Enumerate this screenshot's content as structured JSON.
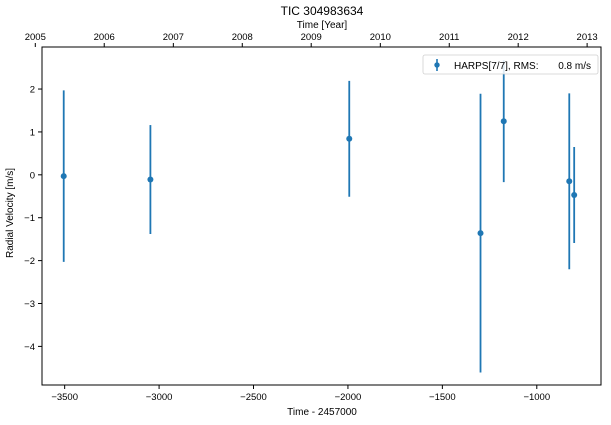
{
  "chart_data": {
    "type": "scatter",
    "title": "TIC 304983634",
    "xlabel": "Time - 2457000",
    "ylabel": "Radial Velocity [m/s]",
    "top_xlabel": "Time [Year]",
    "xlim": [
      -3620,
      -660
    ],
    "ylim": [
      -4.9,
      2.98
    ],
    "x_ticks": [
      -3500,
      -3000,
      -2500,
      -2000,
      -1500,
      -1000
    ],
    "x_tick_labels": [
      "−3500",
      "−3000",
      "−2500",
      "−2000",
      "−1500",
      "−1000"
    ],
    "y_ticks": [
      -4,
      -3,
      -2,
      -1,
      0,
      1,
      2
    ],
    "y_tick_labels": [
      "−4",
      "−3",
      "−2",
      "−1",
      "0",
      "1",
      "2"
    ],
    "top_ticks": [
      -3655.5,
      -3290.5,
      -2924.5,
      -2559.5,
      -2194.5,
      -1828.5,
      -1463.5,
      -1098.5,
      -733.5
    ],
    "top_tick_labels": [
      "2005",
      "2006",
      "2007",
      "2008",
      "2009",
      "2010",
      "2011",
      "2012",
      "2013"
    ],
    "color": "#1f77b4",
    "legend": {
      "label": "HARPS[7/7], RMS:",
      "value": "0.8 m/s",
      "position": "upper right"
    },
    "series": [
      {
        "name": "HARPS[7/7], RMS:",
        "points": [
          {
            "x": -3505,
            "y": -0.03,
            "err": 2.0
          },
          {
            "x": -3046,
            "y": -0.11,
            "err": 1.27
          },
          {
            "x": -1993,
            "y": 0.84,
            "err": 1.35
          },
          {
            "x": -1298,
            "y": -1.36,
            "err": 3.25
          },
          {
            "x": -1175,
            "y": 1.25,
            "err": 1.42
          },
          {
            "x": -828,
            "y": -0.15,
            "err": 2.05
          },
          {
            "x": -802,
            "y": -0.47,
            "err": 1.12
          }
        ]
      }
    ]
  }
}
